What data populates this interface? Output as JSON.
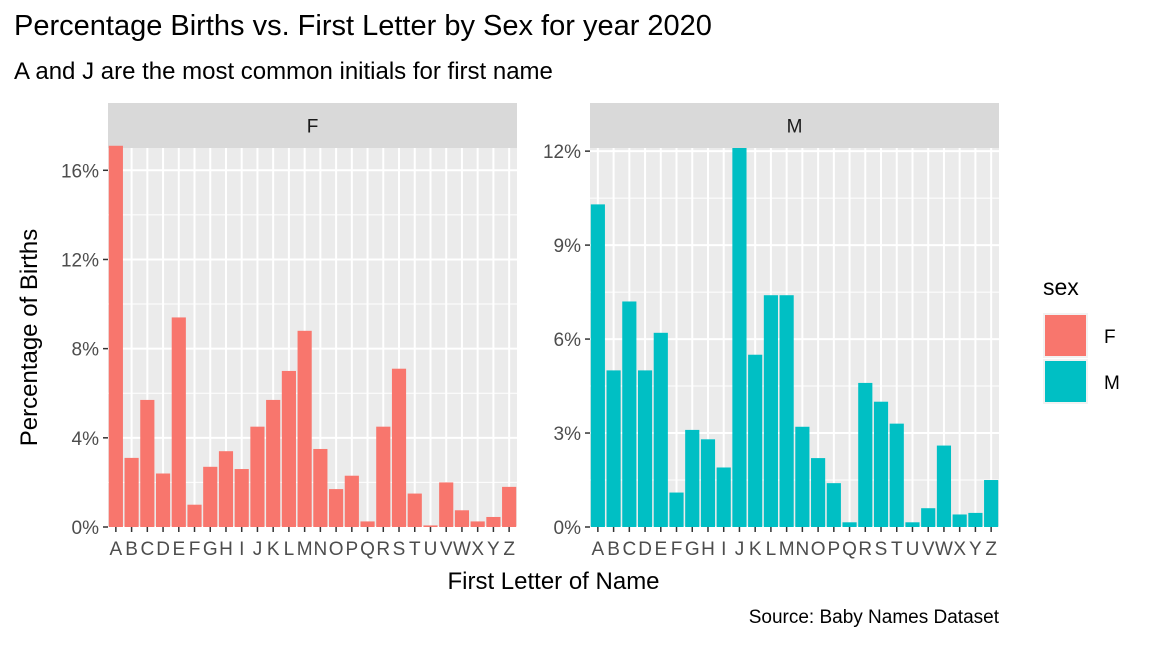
{
  "chart_data": {
    "type": "bar",
    "title": "Percentage Births vs. First Letter by Sex for year 2020",
    "subtitle": "A and J are the most common initials for first name",
    "caption": "Source: Baby Names Dataset",
    "xlabel": "First Letter of Name",
    "ylabel": "Percentage of Births",
    "categories": [
      "A",
      "B",
      "C",
      "D",
      "E",
      "F",
      "G",
      "H",
      "I",
      "J",
      "K",
      "L",
      "M",
      "N",
      "O",
      "P",
      "Q",
      "R",
      "S",
      "T",
      "U",
      "V",
      "W",
      "X",
      "Y",
      "Z"
    ],
    "legend": {
      "title": "sex",
      "position": "right"
    },
    "grid": true,
    "facets": [
      {
        "name": "F",
        "color": "#F8766D",
        "ylim": [
          0,
          0.17
        ],
        "yticks": [
          0,
          0.04,
          0.08,
          0.12,
          0.16
        ],
        "ytick_labels": [
          "0%",
          "4%",
          "8%",
          "12%",
          "16%"
        ],
        "values": [
          0.171,
          0.031,
          0.057,
          0.024,
          0.094,
          0.01,
          0.027,
          0.034,
          0.026,
          0.045,
          0.057,
          0.07,
          0.088,
          0.035,
          0.017,
          0.023,
          0.0025,
          0.045,
          0.071,
          0.015,
          0.0007,
          0.02,
          0.0075,
          0.0025,
          0.0045,
          0.018
        ]
      },
      {
        "name": "M",
        "color": "#00BFC4",
        "ylim": [
          0,
          0.121
        ],
        "yticks": [
          0,
          0.03,
          0.06,
          0.09,
          0.12
        ],
        "ytick_labels": [
          "0%",
          "3%",
          "6%",
          "9%",
          "12%"
        ],
        "values": [
          0.103,
          0.05,
          0.072,
          0.05,
          0.062,
          0.011,
          0.031,
          0.028,
          0.019,
          0.121,
          0.055,
          0.074,
          0.074,
          0.032,
          0.022,
          0.014,
          0.0015,
          0.046,
          0.04,
          0.033,
          0.0015,
          0.006,
          0.026,
          0.004,
          0.0045,
          0.015
        ]
      }
    ]
  }
}
